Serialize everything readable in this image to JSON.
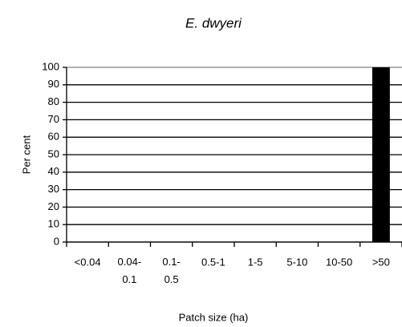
{
  "chart_data": {
    "type": "bar",
    "title": "E. dwyeri",
    "x_label": "Patch size (ha)",
    "y_label": "Per cent",
    "categories": [
      "<0.04",
      "0.04-0.1",
      "0.1-0.5",
      "0.5-1",
      "1-5",
      "5-10",
      "10-50",
      ">50"
    ],
    "values": [
      0,
      0,
      0,
      0,
      0,
      0,
      0,
      100
    ],
    "color": "#000000",
    "ylim": [
      0,
      100
    ],
    "yticks": [
      0,
      10,
      20,
      30,
      40,
      50,
      60,
      70,
      80,
      90,
      100
    ],
    "grid": true
  }
}
